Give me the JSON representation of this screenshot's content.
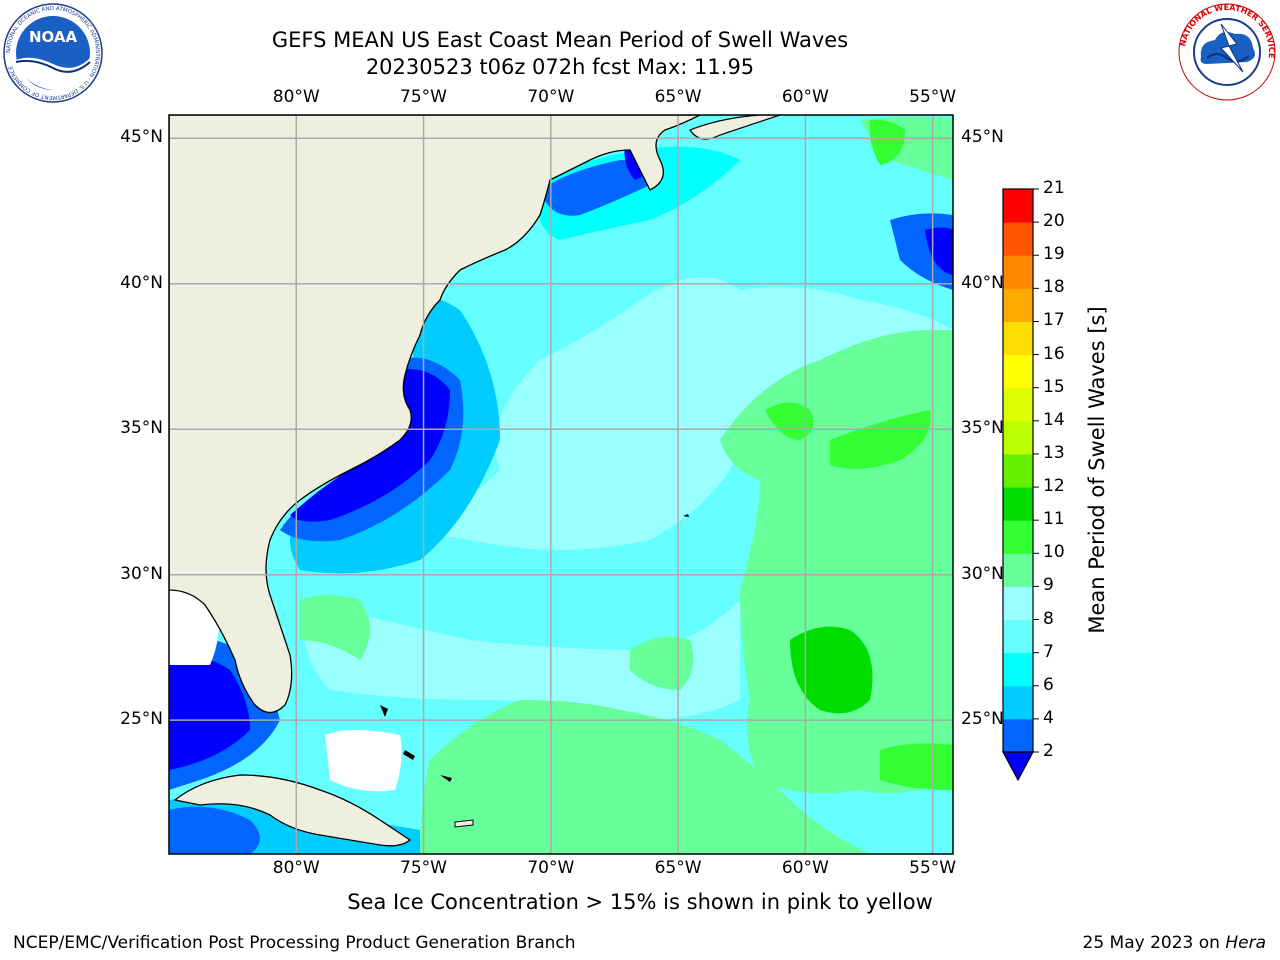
{
  "title_line1": "GEFS MEAN US East Coast Mean Period of Swell Waves",
  "title_line2": "20230523 t06z 072h fcst   Max: 11.95",
  "footnote": "Sea Ice Concentration > 15% is shown in pink to yellow",
  "credit_left": "NCEP/EMC/Verification Post Processing Product Generation Branch",
  "credit_right_date": "25 May 2023 on ",
  "credit_right_host": "Hera",
  "logos": {
    "noaa": {
      "text": "NOAA",
      "ring_text": "NATIONAL OCEANIC AND ATMOSPHERIC ADMINISTRATION · U.S. DEPARTMENT OF COMMERCE"
    },
    "nws": {
      "ring_text": "NATIONAL WEATHER SERVICE"
    }
  },
  "map": {
    "projection": "lat-lon",
    "lon_range": [
      -85,
      -54.2
    ],
    "lat_range": [
      20.4,
      45.8
    ],
    "lon_ticks": [
      -80,
      -75,
      -70,
      -65,
      -60,
      -55
    ],
    "lat_ticks": [
      45,
      40,
      35,
      30,
      25
    ],
    "lon_tick_labels": [
      "80°W",
      "75°W",
      "70°W",
      "65°W",
      "60°W",
      "55°W"
    ],
    "lat_tick_labels": [
      "45°N",
      "40°N",
      "35°N",
      "30°N",
      "25°N"
    ],
    "gridlines": true,
    "land_color": "#efefdf",
    "sea_ice_color": "#ffffff"
  },
  "colorbar": {
    "label": "Mean Period of Swell Waves [s]",
    "ticks": [
      2,
      4,
      6,
      7,
      8,
      9,
      10,
      11,
      12,
      13,
      14,
      15,
      16,
      17,
      18,
      19,
      20,
      21
    ],
    "tick_labels": [
      "2",
      "4",
      "6",
      "7",
      "8",
      "9",
      "10",
      "11",
      "12",
      "13",
      "14",
      "15",
      "16",
      "17",
      "18",
      "19",
      "20",
      "21"
    ],
    "colors": [
      "#0066ff",
      "#00ccff",
      "#00ffff",
      "#66ffff",
      "#99ffff",
      "#66ff99",
      "#33ff33",
      "#00dd00",
      "#66ee00",
      "#bbff00",
      "#ddff00",
      "#ffff00",
      "#ffdd00",
      "#ffaa00",
      "#ff8800",
      "#ff5500",
      "#ff0000"
    ],
    "under_color": "#0000ff",
    "extend": "min"
  },
  "field_classes": [
    {
      "name": "<2",
      "color": "#0000ff"
    },
    {
      "name": "2-4",
      "color": "#0066ff"
    },
    {
      "name": "4-6",
      "color": "#00ccff"
    },
    {
      "name": "6-7",
      "color": "#00ffff"
    },
    {
      "name": "7-8",
      "color": "#66ffff"
    },
    {
      "name": "8-9",
      "color": "#99ffff"
    },
    {
      "name": "9-10",
      "color": "#66ff99"
    },
    {
      "name": "10-11",
      "color": "#33ff33"
    },
    {
      "name": "11-12",
      "color": "#00dd00"
    }
  ]
}
